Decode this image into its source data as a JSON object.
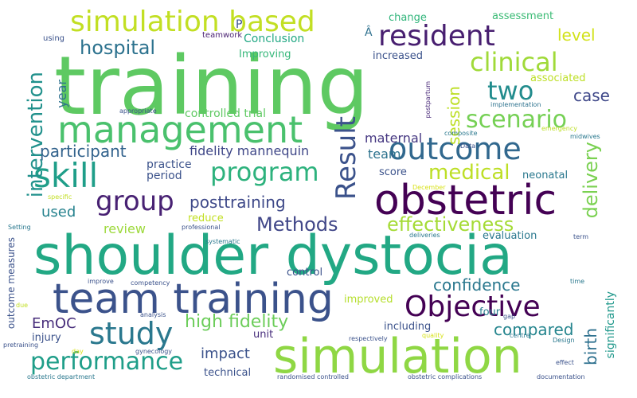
{
  "colors": {
    "background": "#ffffff",
    "palette": [
      "#440154",
      "#46327e",
      "#365c8d",
      "#277f8e",
      "#1fa187",
      "#4ac16d",
      "#a0da39",
      "#d4e020"
    ]
  },
  "words": [
    {
      "text": "training",
      "color": "#5ec962"
    },
    {
      "text": "shoulder dystocia",
      "color": "#22a884"
    },
    {
      "text": "simulation",
      "color": "#8fd744"
    },
    {
      "text": "team training",
      "color": "#3b528b"
    },
    {
      "text": "management",
      "color": "#4ac16d"
    },
    {
      "text": "obstetric",
      "color": "#440154"
    },
    {
      "text": "outcome",
      "color": "#31688e"
    },
    {
      "text": "Objective",
      "color": "#440154"
    },
    {
      "text": "simulation based",
      "color": "#c2df23"
    },
    {
      "text": "resident",
      "color": "#481f70"
    },
    {
      "text": "skill",
      "color": "#1f9e89"
    },
    {
      "text": "study",
      "color": "#2a788e"
    },
    {
      "text": "program",
      "color": "#2db27d"
    },
    {
      "text": "group",
      "color": "#482173"
    },
    {
      "text": "clinical",
      "color": "#a0da39"
    },
    {
      "text": "two",
      "color": "#228c8d"
    },
    {
      "text": "scenario",
      "color": "#75d054"
    },
    {
      "text": "performance",
      "color": "#1f9e89"
    },
    {
      "text": "hospital",
      "color": "#2c728e"
    },
    {
      "text": "Result",
      "color": "#3b528b"
    },
    {
      "text": "medical",
      "color": "#bddf26"
    },
    {
      "text": "effectiveness",
      "color": "#a5db36"
    },
    {
      "text": "intervention",
      "color": "#21918c"
    },
    {
      "text": "Methods",
      "color": "#404688"
    },
    {
      "text": "high fidelity",
      "color": "#6ccd5a"
    },
    {
      "text": "posttraining",
      "color": "#3e4989"
    },
    {
      "text": "participant",
      "color": "#33638d"
    },
    {
      "text": "delivery",
      "color": "#7ad151"
    },
    {
      "text": "confidence",
      "color": "#2a788e"
    },
    {
      "text": "compared",
      "color": "#25858e"
    },
    {
      "text": "level",
      "color": "#d2e21b"
    },
    {
      "text": "session",
      "color": "#bddf26"
    },
    {
      "text": "case",
      "color": "#3f4889"
    },
    {
      "text": "fidelity mannequin",
      "color": "#3f4788"
    },
    {
      "text": "used",
      "color": "#26828e"
    },
    {
      "text": "maternal",
      "color": "#453781"
    },
    {
      "text": "EmOC",
      "color": "#472d7b"
    },
    {
      "text": "review",
      "color": "#9dd93b"
    },
    {
      "text": "birth",
      "color": "#2d708e"
    },
    {
      "text": "significantly",
      "color": "#1f988b"
    },
    {
      "text": "impact",
      "color": "#3b528b"
    },
    {
      "text": "year",
      "color": "#2d708e"
    },
    {
      "text": "team",
      "color": "#2c728e"
    },
    {
      "text": "controlled trial",
      "color": "#5ec962"
    },
    {
      "text": "practice",
      "color": "#3b528b"
    },
    {
      "text": "period",
      "color": "#3b528b"
    },
    {
      "text": "Improving",
      "color": "#35b779"
    },
    {
      "text": "Conclusion",
      "color": "#22a884"
    },
    {
      "text": "change",
      "color": "#31b57b"
    },
    {
      "text": "assessment",
      "color": "#3bbb75"
    },
    {
      "text": "increased",
      "color": "#3b528b"
    },
    {
      "text": "associated",
      "color": "#bddf26"
    },
    {
      "text": "reduce",
      "color": "#c2df23"
    },
    {
      "text": "neonatal",
      "color": "#2a788e"
    },
    {
      "text": "score",
      "color": "#3b528b"
    },
    {
      "text": "evaluation",
      "color": "#2a788e"
    },
    {
      "text": "control",
      "color": "#3b528b"
    },
    {
      "text": "improved",
      "color": "#b5de2b"
    },
    {
      "text": "including",
      "color": "#3b528b"
    },
    {
      "text": "four",
      "color": "#287d8e"
    },
    {
      "text": "unit",
      "color": "#472d7b"
    },
    {
      "text": "injury",
      "color": "#3b528b"
    },
    {
      "text": "technical",
      "color": "#3b528b"
    },
    {
      "text": "outcome measures",
      "color": "#3b528b"
    },
    {
      "text": "P",
      "color": "#3b528b"
    },
    {
      "text": "Â",
      "color": "#2d708e"
    },
    {
      "text": "teamwork",
      "color": "#481f70"
    },
    {
      "text": "using",
      "color": "#3b528b"
    },
    {
      "text": "postpartum",
      "color": "#482878"
    },
    {
      "text": "appropriate",
      "color": "#3b528b"
    },
    {
      "text": "implementation",
      "color": "#2c728e"
    },
    {
      "text": "composite",
      "color": "#2a788e"
    },
    {
      "text": "emergency",
      "color": "#bddf26"
    },
    {
      "text": "midwives",
      "color": "#2a788e"
    },
    {
      "text": "Data",
      "color": "#3b528b"
    },
    {
      "text": "December",
      "color": "#d8e219"
    },
    {
      "text": "specific",
      "color": "#c2df23"
    },
    {
      "text": "Setting",
      "color": "#2a788e"
    },
    {
      "text": "professional",
      "color": "#3b528b"
    },
    {
      "text": "systematic",
      "color": "#2a788e"
    },
    {
      "text": "deliveries",
      "color": "#2a788e"
    },
    {
      "text": "term",
      "color": "#3b528b"
    },
    {
      "text": "improve",
      "color": "#3b528b"
    },
    {
      "text": "competency",
      "color": "#3b528b"
    },
    {
      "text": "time",
      "color": "#2a788e"
    },
    {
      "text": "due",
      "color": "#c2df23"
    },
    {
      "text": "analysis",
      "color": "#3b528b"
    },
    {
      "text": "gap",
      "color": "#3b528b"
    },
    {
      "text": "pretraining",
      "color": "#3b528b"
    },
    {
      "text": "respectively",
      "color": "#3b528b"
    },
    {
      "text": "quality",
      "color": "#d8e219"
    },
    {
      "text": "centre",
      "color": "#2a788e"
    },
    {
      "text": "Design",
      "color": "#2a788e"
    },
    {
      "text": "day",
      "color": "#d8e219"
    },
    {
      "text": "gynecology",
      "color": "#3b528b"
    },
    {
      "text": "effect",
      "color": "#3b528b"
    },
    {
      "text": "obstetric department",
      "color": "#2a788e"
    },
    {
      "text": "randomised controlled",
      "color": "#3b528b"
    },
    {
      "text": "obstetric complications",
      "color": "#3b528b"
    },
    {
      "text": "documentation",
      "color": "#3b528b"
    }
  ]
}
